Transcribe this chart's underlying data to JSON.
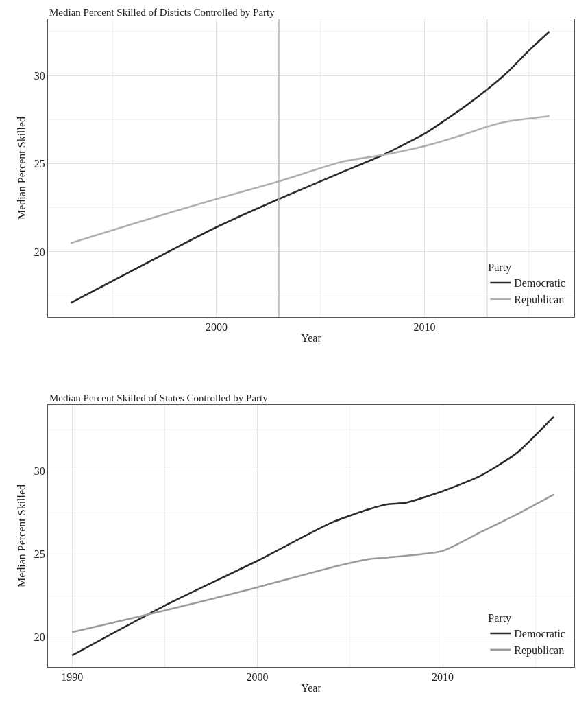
{
  "chart_data": [
    {
      "type": "line",
      "title": "Median Percent Skilled of Disticts Controlled by Party",
      "xlabel": "Year",
      "ylabel": "Median Percent Skilled",
      "legend_title": "Party",
      "legend": "bottom right",
      "grid": true,
      "xlim": [
        1991.9,
        2017.2
      ],
      "ylim": [
        16.3,
        33.2
      ],
      "xticks": [
        2000,
        2010
      ],
      "yticks": [
        20,
        25,
        30
      ],
      "ref_lines": [
        {
          "axis": "x",
          "value": 2003,
          "color": "#b5b5b5"
        },
        {
          "axis": "x",
          "value": 2013,
          "color": "#b5b5b5"
        }
      ],
      "series": [
        {
          "name": "Democratic",
          "color": "#2b2b2b",
          "x": [
            1993,
            2000,
            2003,
            2006,
            2008,
            2010,
            2012,
            2013,
            2014,
            2015,
            2016
          ],
          "values": [
            17.1,
            21.4,
            23.0,
            24.5,
            25.5,
            26.7,
            28.3,
            29.2,
            30.2,
            31.4,
            32.5
          ]
        },
        {
          "name": "Republican",
          "color": "#b0b0b0",
          "x": [
            1993,
            1996,
            2000,
            2003,
            2006,
            2008,
            2010,
            2012,
            2013,
            2014,
            2016
          ],
          "values": [
            20.5,
            21.6,
            23.0,
            24.0,
            25.1,
            25.5,
            26.0,
            26.7,
            27.1,
            27.4,
            27.7
          ]
        }
      ]
    },
    {
      "type": "line",
      "title": "Median Percent Skilled of States Controlled by Party",
      "xlabel": "Year",
      "ylabel": "Median Percent Skilled",
      "legend_title": "Party",
      "legend": "bottom right",
      "grid": true,
      "xlim": [
        1988.7,
        2017.1
      ],
      "ylim": [
        18.2,
        34.0
      ],
      "xticks": [
        1990,
        2000,
        2010
      ],
      "yticks": [
        20,
        25,
        30
      ],
      "series": [
        {
          "name": "Democratic",
          "color": "#2b2b2b",
          "x": [
            1990,
            1995,
            2000,
            2004,
            2006,
            2007,
            2008,
            2010,
            2012,
            2014,
            2016
          ],
          "values": [
            18.9,
            21.9,
            24.6,
            26.9,
            27.7,
            28.0,
            28.1,
            28.8,
            29.7,
            31.1,
            33.3
          ]
        },
        {
          "name": "Republican",
          "color": "#9c9c9c",
          "x": [
            1990,
            1995,
            2000,
            2004,
            2006,
            2007,
            2008,
            2010,
            2012,
            2014,
            2016
          ],
          "values": [
            20.3,
            21.6,
            23.0,
            24.2,
            24.7,
            24.8,
            24.9,
            25.2,
            26.3,
            27.4,
            28.6
          ]
        }
      ]
    }
  ]
}
